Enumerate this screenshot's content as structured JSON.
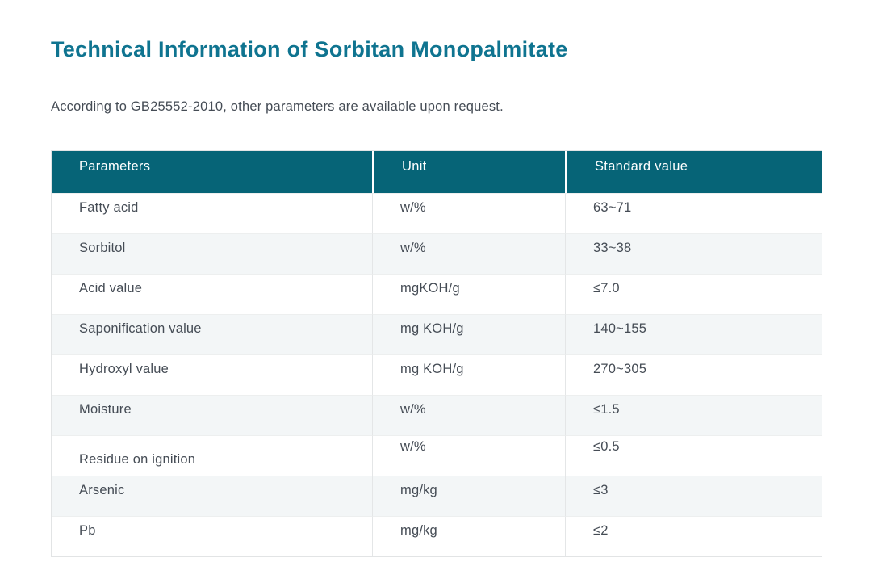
{
  "page": {
    "title": "Technical Information of Sorbitan Monopalmitate",
    "subtitle": "According to GB25552-2010, other parameters are available upon request."
  },
  "table": {
    "columns": [
      "Parameters",
      "Unit",
      "Standard value"
    ],
    "rows": [
      {
        "parameter": "Fatty acid",
        "unit": "w/%",
        "value": "63~71"
      },
      {
        "parameter": "Sorbitol",
        "unit": "w/%",
        "value": "33~38"
      },
      {
        "parameter": "Acid value",
        "unit": "mgKOH/g",
        "value": "≤7.0"
      },
      {
        "parameter": "Saponification value",
        "unit": "mg KOH/g",
        "value": "140~155"
      },
      {
        "parameter": "Hydroxyl value",
        "unit": "mg KOH/g",
        "value": "270~305"
      },
      {
        "parameter": "Moisture",
        "unit": "w/%",
        "value": "≤1.5"
      },
      {
        "parameter": "Residue on ignition",
        "unit": "w/%",
        "value": "≤0.5"
      },
      {
        "parameter": "Arsenic",
        "unit": "mg/kg",
        "value": "≤3"
      },
      {
        "parameter": "Pb",
        "unit": "mg/kg",
        "value": "≤2"
      }
    ]
  },
  "colors": {
    "title_text": "#0f7490",
    "table_header_bg": "#066477",
    "table_header_text": "#ffffff",
    "body_text": "#454c55",
    "row_alt_bg": "#f3f6f7",
    "border": "#e4e6e7"
  }
}
